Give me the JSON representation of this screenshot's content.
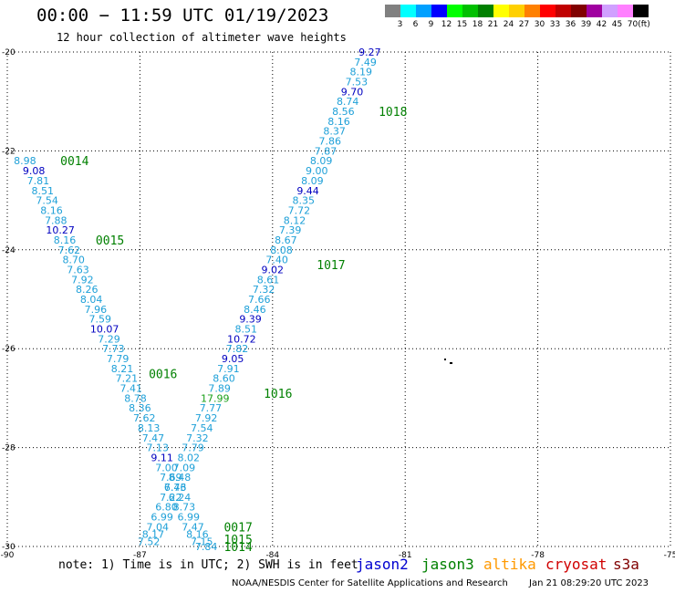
{
  "header": {
    "title": "00:00 − 11:59 UTC 01/19/2023",
    "subtitle": "12 hour collection of altimeter wave heights"
  },
  "legend": {
    "unit": "(ft)",
    "bins": [
      {
        "label": "3",
        "color": "#808080"
      },
      {
        "label": "6",
        "color": "#00ffff"
      },
      {
        "label": "9",
        "color": "#00a0ff"
      },
      {
        "label": "12",
        "color": "#0000ff"
      },
      {
        "label": "15",
        "color": "#00ff00"
      },
      {
        "label": "18",
        "color": "#00c000"
      },
      {
        "label": "21",
        "color": "#008000"
      },
      {
        "label": "24",
        "color": "#ffff00"
      },
      {
        "label": "27",
        "color": "#ffd000"
      },
      {
        "label": "30",
        "color": "#ff8000"
      },
      {
        "label": "33",
        "color": "#ff0000"
      },
      {
        "label": "36",
        "color": "#c00000"
      },
      {
        "label": "39",
        "color": "#800000"
      },
      {
        "label": "42",
        "color": "#a000a0"
      },
      {
        "label": "45",
        "color": "#d0a0ff"
      },
      {
        "label": "70",
        "color": "#ff80ff"
      },
      {
        "label": "",
        "color": "#000000"
      }
    ]
  },
  "map": {
    "lon_range": [
      -90,
      -75
    ],
    "lat_range": [
      -30,
      -20
    ],
    "lon_ticks": [
      "-90",
      "-87",
      "-84",
      "-81",
      "-78",
      "-75"
    ],
    "lat_ticks": [
      "-20",
      "-22",
      "-24",
      "-26",
      "-28",
      "-30"
    ],
    "colors": {
      "light": "#1ea0d8",
      "dark": "#0000c0",
      "green": "#1aa01a",
      "time": "#008000"
    },
    "west_track": [
      {
        "v": "8.98",
        "lon": -89.6,
        "lat": -22.2,
        "c": "light"
      },
      {
        "v": "9.08",
        "lon": -89.4,
        "lat": -22.4,
        "c": "dark"
      },
      {
        "v": "7.81",
        "lon": -89.3,
        "lat": -22.6,
        "c": "light"
      },
      {
        "v": "8.51",
        "lon": -89.2,
        "lat": -22.8,
        "c": "light"
      },
      {
        "v": "7.54",
        "lon": -89.1,
        "lat": -23.0,
        "c": "light"
      },
      {
        "v": "8.16",
        "lon": -89.0,
        "lat": -23.2,
        "c": "light"
      },
      {
        "v": "7.88",
        "lon": -88.9,
        "lat": -23.4,
        "c": "light"
      },
      {
        "v": "10.27",
        "lon": -88.8,
        "lat": -23.6,
        "c": "dark"
      },
      {
        "v": "8.16",
        "lon": -88.7,
        "lat": -23.8,
        "c": "light"
      },
      {
        "v": "7.62",
        "lon": -88.6,
        "lat": -24.0,
        "c": "light"
      },
      {
        "v": "8.70",
        "lon": -88.5,
        "lat": -24.2,
        "c": "light"
      },
      {
        "v": "7.63",
        "lon": -88.4,
        "lat": -24.4,
        "c": "light"
      },
      {
        "v": "7.92",
        "lon": -88.3,
        "lat": -24.6,
        "c": "light"
      },
      {
        "v": "8.26",
        "lon": -88.2,
        "lat": -24.8,
        "c": "light"
      },
      {
        "v": "8.04",
        "lon": -88.1,
        "lat": -25.0,
        "c": "light"
      },
      {
        "v": "7.96",
        "lon": -88.0,
        "lat": -25.2,
        "c": "light"
      },
      {
        "v": "7.59",
        "lon": -87.9,
        "lat": -25.4,
        "c": "light"
      },
      {
        "v": "10.07",
        "lon": -87.8,
        "lat": -25.6,
        "c": "dark"
      },
      {
        "v": "7.29",
        "lon": -87.7,
        "lat": -25.8,
        "c": "light"
      },
      {
        "v": "7.73",
        "lon": -87.6,
        "lat": -26.0,
        "c": "light"
      },
      {
        "v": "7.79",
        "lon": -87.5,
        "lat": -26.2,
        "c": "light"
      },
      {
        "v": "8.21",
        "lon": -87.4,
        "lat": -26.4,
        "c": "light"
      },
      {
        "v": "7.21",
        "lon": -87.3,
        "lat": -26.6,
        "c": "light"
      },
      {
        "v": "7.41",
        "lon": -87.2,
        "lat": -26.8,
        "c": "light"
      },
      {
        "v": "8.78",
        "lon": -87.1,
        "lat": -27.0,
        "c": "light"
      },
      {
        "v": "8.36",
        "lon": -87.0,
        "lat": -27.2,
        "c": "light"
      },
      {
        "v": "7.62",
        "lon": -86.9,
        "lat": -27.4,
        "c": "light"
      },
      {
        "v": "8.13",
        "lon": -86.8,
        "lat": -27.6,
        "c": "light"
      },
      {
        "v": "7.47",
        "lon": -86.7,
        "lat": -27.8,
        "c": "light"
      },
      {
        "v": "7.13",
        "lon": -86.6,
        "lat": -28.0,
        "c": "light"
      },
      {
        "v": "9.11",
        "lon": -86.5,
        "lat": -28.2,
        "c": "dark"
      },
      {
        "v": "7.00",
        "lon": -86.4,
        "lat": -28.4,
        "c": "light"
      },
      {
        "v": "7.69",
        "lon": -86.3,
        "lat": -28.6,
        "c": "light"
      },
      {
        "v": "7.43",
        "lon": -86.2,
        "lat": -28.8,
        "c": "light"
      },
      {
        "v": "6.24",
        "lon": -86.1,
        "lat": -29.0,
        "c": "light"
      },
      {
        "v": "8.73",
        "lon": -86.0,
        "lat": -29.2,
        "c": "light"
      },
      {
        "v": "6.99",
        "lon": -85.9,
        "lat": -29.4,
        "c": "light"
      },
      {
        "v": "7.47",
        "lon": -85.8,
        "lat": -29.6,
        "c": "light"
      },
      {
        "v": "8.16",
        "lon": -85.7,
        "lat": -29.75,
        "c": "light"
      },
      {
        "v": "7.15",
        "lon": -85.6,
        "lat": -29.9,
        "c": "light"
      },
      {
        "v": "7.84",
        "lon": -85.5,
        "lat": -30.0,
        "c": "light"
      }
    ],
    "east_track": [
      {
        "v": "9.27",
        "lon": -81.8,
        "lat": -20.0,
        "c": "dark"
      },
      {
        "v": "7.49",
        "lon": -81.9,
        "lat": -20.2,
        "c": "light"
      },
      {
        "v": "8.19",
        "lon": -82.0,
        "lat": -20.4,
        "c": "light"
      },
      {
        "v": "7.53",
        "lon": -82.1,
        "lat": -20.6,
        "c": "light"
      },
      {
        "v": "9.70",
        "lon": -82.2,
        "lat": -20.8,
        "c": "dark"
      },
      {
        "v": "8.74",
        "lon": -82.3,
        "lat": -21.0,
        "c": "light"
      },
      {
        "v": "8.56",
        "lon": -82.4,
        "lat": -21.2,
        "c": "light"
      },
      {
        "v": "8.16",
        "lon": -82.5,
        "lat": -21.4,
        "c": "light"
      },
      {
        "v": "8.37",
        "lon": -82.6,
        "lat": -21.6,
        "c": "light"
      },
      {
        "v": "7.86",
        "lon": -82.7,
        "lat": -21.8,
        "c": "light"
      },
      {
        "v": "7.87",
        "lon": -82.8,
        "lat": -22.0,
        "c": "light"
      },
      {
        "v": "8.09",
        "lon": -82.9,
        "lat": -22.2,
        "c": "light"
      },
      {
        "v": "9.00",
        "lon": -83.0,
        "lat": -22.4,
        "c": "light"
      },
      {
        "v": "8.09",
        "lon": -83.1,
        "lat": -22.6,
        "c": "light"
      },
      {
        "v": "9.44",
        "lon": -83.2,
        "lat": -22.8,
        "c": "dark"
      },
      {
        "v": "8.35",
        "lon": -83.3,
        "lat": -23.0,
        "c": "light"
      },
      {
        "v": "7.72",
        "lon": -83.4,
        "lat": -23.2,
        "c": "light"
      },
      {
        "v": "8.12",
        "lon": -83.5,
        "lat": -23.4,
        "c": "light"
      },
      {
        "v": "7.39",
        "lon": -83.6,
        "lat": -23.6,
        "c": "light"
      },
      {
        "v": "8.67",
        "lon": -83.7,
        "lat": -23.8,
        "c": "light"
      },
      {
        "v": "8.08",
        "lon": -83.8,
        "lat": -24.0,
        "c": "light"
      },
      {
        "v": "7.40",
        "lon": -83.9,
        "lat": -24.2,
        "c": "light"
      },
      {
        "v": "9.02",
        "lon": -84.0,
        "lat": -24.4,
        "c": "dark"
      },
      {
        "v": "8.61",
        "lon": -84.1,
        "lat": -24.6,
        "c": "light"
      },
      {
        "v": "7.32",
        "lon": -84.2,
        "lat": -24.8,
        "c": "light"
      },
      {
        "v": "7.66",
        "lon": -84.3,
        "lat": -25.0,
        "c": "light"
      },
      {
        "v": "8.46",
        "lon": -84.4,
        "lat": -25.2,
        "c": "light"
      },
      {
        "v": "9.39",
        "lon": -84.5,
        "lat": -25.4,
        "c": "dark"
      },
      {
        "v": "8.51",
        "lon": -84.6,
        "lat": -25.6,
        "c": "light"
      },
      {
        "v": "10.72",
        "lon": -84.7,
        "lat": -25.8,
        "c": "dark"
      },
      {
        "v": "7.82",
        "lon": -84.8,
        "lat": -26.0,
        "c": "light"
      },
      {
        "v": "9.05",
        "lon": -84.9,
        "lat": -26.2,
        "c": "dark"
      },
      {
        "v": "7.91",
        "lon": -85.0,
        "lat": -26.4,
        "c": "light"
      },
      {
        "v": "8.60",
        "lon": -85.1,
        "lat": -26.6,
        "c": "light"
      },
      {
        "v": "7.89",
        "lon": -85.2,
        "lat": -26.8,
        "c": "light"
      },
      {
        "v": "17.99",
        "lon": -85.3,
        "lat": -27.0,
        "c": "green"
      },
      {
        "v": "7.77",
        "lon": -85.4,
        "lat": -27.2,
        "c": "light"
      },
      {
        "v": "7.92",
        "lon": -85.5,
        "lat": -27.4,
        "c": "light"
      },
      {
        "v": "7.54",
        "lon": -85.6,
        "lat": -27.6,
        "c": "light"
      },
      {
        "v": "7.32",
        "lon": -85.7,
        "lat": -27.8,
        "c": "light"
      },
      {
        "v": "7.79",
        "lon": -85.8,
        "lat": -28.0,
        "c": "light"
      },
      {
        "v": "8.02",
        "lon": -85.9,
        "lat": -28.2,
        "c": "light"
      },
      {
        "v": "7.09",
        "lon": -86.0,
        "lat": -28.4,
        "c": "light"
      },
      {
        "v": "8.48",
        "lon": -86.1,
        "lat": -28.6,
        "c": "light"
      },
      {
        "v": "6.76",
        "lon": -86.2,
        "lat": -28.8,
        "c": "light"
      },
      {
        "v": "7.22",
        "lon": -86.3,
        "lat": -29.0,
        "c": "light"
      },
      {
        "v": "6.80",
        "lon": -86.4,
        "lat": -29.2,
        "c": "light"
      },
      {
        "v": "6.99",
        "lon": -86.5,
        "lat": -29.4,
        "c": "light"
      },
      {
        "v": "7.04",
        "lon": -86.6,
        "lat": -29.6,
        "c": "light"
      },
      {
        "v": "8.17",
        "lon": -86.7,
        "lat": -29.75,
        "c": "light"
      },
      {
        "v": "7.52",
        "lon": -86.8,
        "lat": -29.9,
        "c": "light"
      }
    ],
    "time_labels": [
      {
        "t": "0014",
        "lon": -88.8,
        "lat": -22.2
      },
      {
        "t": "0015",
        "lon": -88.0,
        "lat": -23.8
      },
      {
        "t": "0016",
        "lon": -86.8,
        "lat": -26.5
      },
      {
        "t": "1016",
        "lon": -84.2,
        "lat": -26.9
      },
      {
        "t": "1017",
        "lon": -83.0,
        "lat": -24.3
      },
      {
        "t": "1018",
        "lon": -81.6,
        "lat": -21.2
      },
      {
        "t": "0017",
        "lon": -85.1,
        "lat": -29.6
      },
      {
        "t": "1015",
        "lon": -85.1,
        "lat": -29.85
      },
      {
        "t": "1014",
        "lon": -85.1,
        "lat": -30.0
      }
    ]
  },
  "footer": {
    "note": "note: 1) Time is in UTC; 2) SWH is in feet",
    "satellites": [
      {
        "name": "jason2",
        "color": "#0000d0"
      },
      {
        "name": "jason3",
        "color": "#008000"
      },
      {
        "name": "altika",
        "color": "#ff9900"
      },
      {
        "name": "cryosat",
        "color": "#d00000"
      },
      {
        "name": "s3a",
        "color": "#800000"
      }
    ],
    "credit": "NOAA/NESDIS Center for Satellite Applications and Research",
    "generated": "Jan 21 08:29:20 UTC 2023"
  }
}
